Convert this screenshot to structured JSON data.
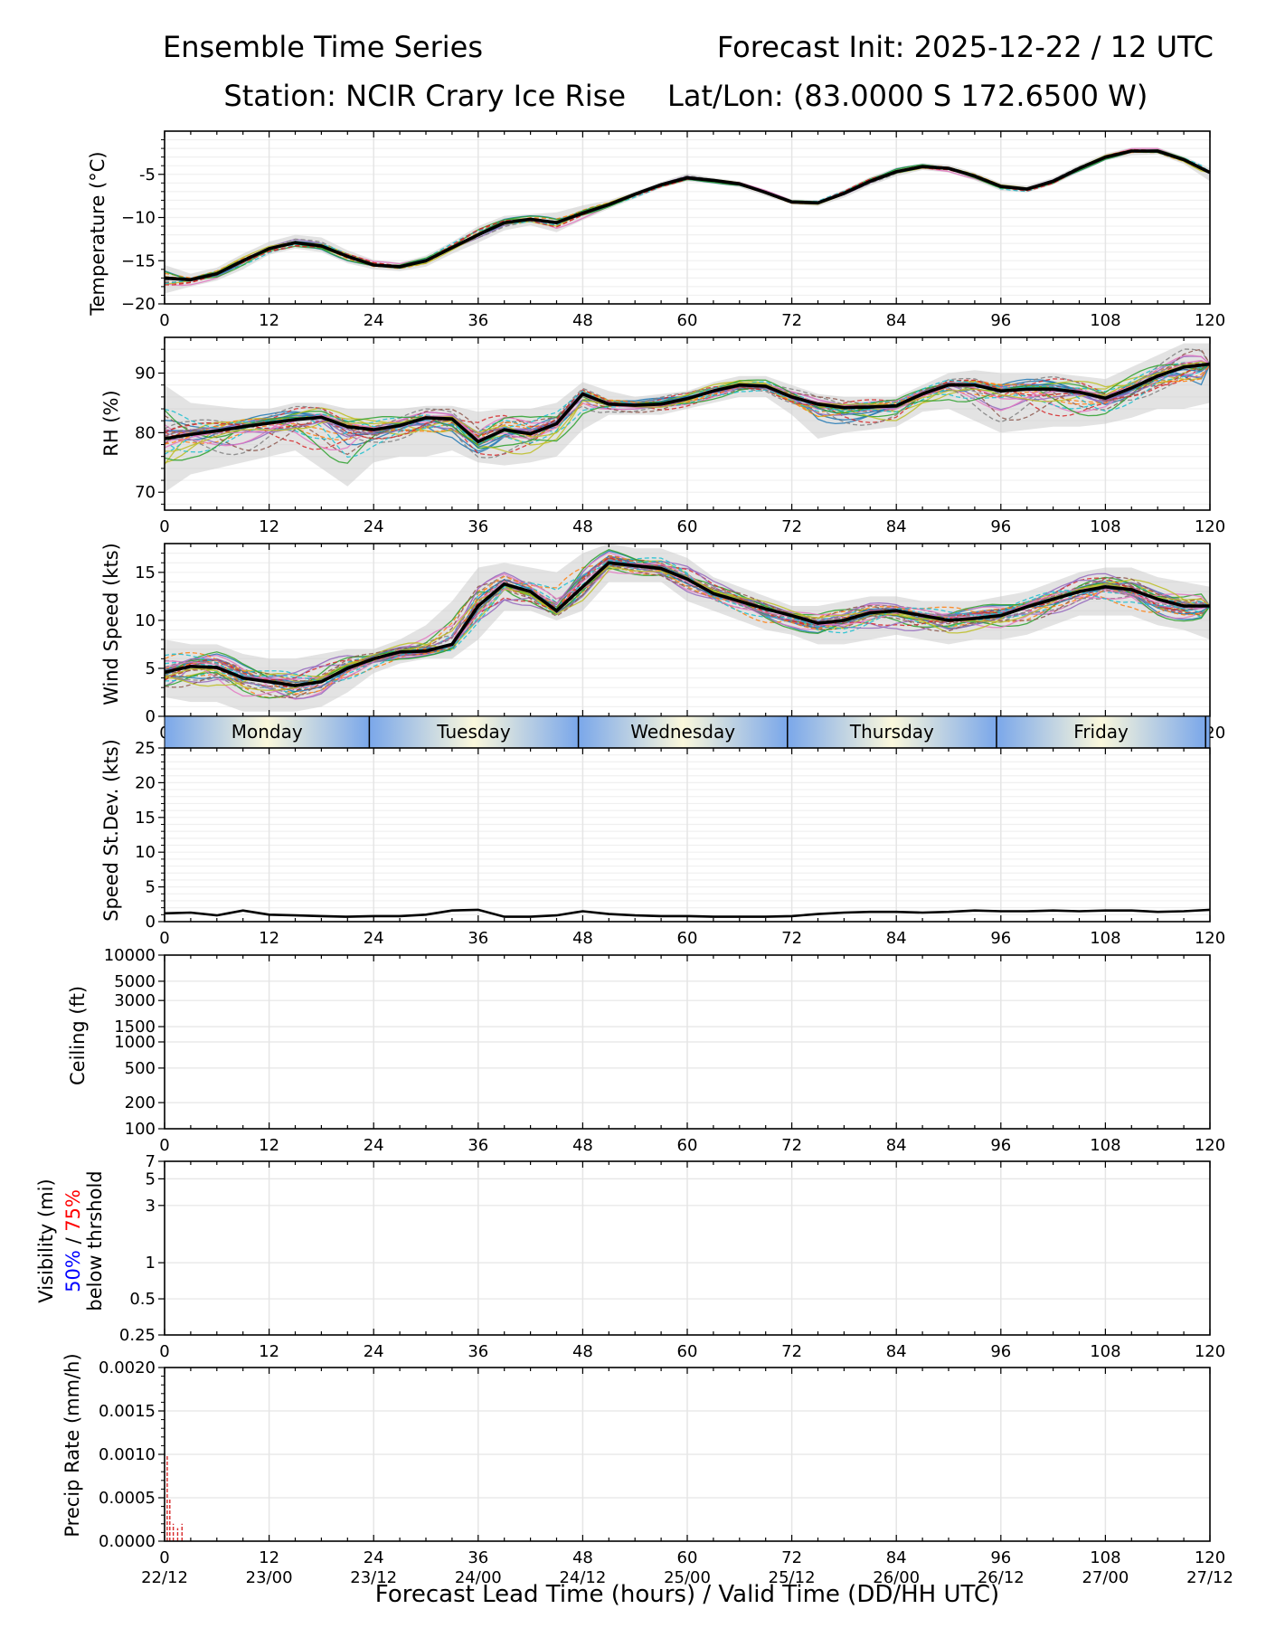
{
  "header": {
    "title_left": "Ensemble Time Series",
    "title_right": "Forecast Init: 2025-12-22 / 12 UTC",
    "station": "Station: NCIR Crary Ice Rise",
    "latlon": "Lat/Lon: (83.0000 S 172.6500 W)"
  },
  "x_axis": {
    "label": "Forecast Lead Time (hours) / Valid Time (DD/HH UTC)",
    "ticks": [
      "0",
      "12",
      "24",
      "36",
      "48",
      "60",
      "72",
      "84",
      "96",
      "108",
      "120"
    ],
    "valid_times": [
      "22/12",
      "23/00",
      "23/12",
      "24/00",
      "24/12",
      "25/00",
      "25/12",
      "26/00",
      "26/12",
      "27/00",
      "27/12"
    ],
    "range": [
      0,
      120
    ]
  },
  "day_band": {
    "days": [
      "Monday",
      "Tuesday",
      "Wednesday",
      "Thursday",
      "Friday"
    ],
    "boundaries_hours": [
      0,
      23.5,
      47.5,
      71.5,
      95.5,
      119.5
    ]
  },
  "colors": {
    "mean_line": "#000000",
    "spread": "#cccccc",
    "grid": "#e5e5e5",
    "vis_50": "#0000ff",
    "vis_75": "#ff0000",
    "precip": "#d62728",
    "day_light": "#fbf8dc",
    "day_dark": "#7aa7ea"
  },
  "panels": {
    "temperature": {
      "label": "Temperature (°C)",
      "ylim": [
        -20,
        0
      ],
      "yticks": [
        "-5",
        "−10",
        "−15",
        "−20"
      ]
    },
    "rh": {
      "label": "RH (%)",
      "ylim": [
        67,
        96
      ],
      "yticks": [
        "90",
        "80",
        "70"
      ]
    },
    "wind": {
      "label": "Wind Speed (kts)",
      "ylim": [
        0,
        18
      ],
      "yticks": [
        "15",
        "10",
        "5",
        "0"
      ]
    },
    "stdev": {
      "label": "Speed St.Dev. (kts)",
      "ylim": [
        0,
        25
      ],
      "yticks": [
        "25",
        "20",
        "15",
        "10",
        "5",
        "0"
      ]
    },
    "ceiling": {
      "label": "Ceiling (ft)",
      "scale": "log",
      "ylim": [
        100,
        10000
      ],
      "yticks": [
        "10000",
        "5000",
        "3000",
        "1500",
        "1000",
        "500",
        "200",
        "100"
      ]
    },
    "visibility": {
      "label_line1": "Visibility (mi)",
      "label_50": "50%",
      "label_sep": " / ",
      "label_75": "75%",
      "label_line3": "below thrshold",
      "scale": "log",
      "ylim": [
        0.25,
        7
      ],
      "yticks": [
        "7",
        "5",
        "3",
        "1",
        "0.5",
        "0.25"
      ]
    },
    "precip": {
      "label": "Precip Rate (mm/h)",
      "ylim": [
        0,
        0.002
      ],
      "yticks": [
        "0.0020",
        "0.0015",
        "0.0010",
        "0.0005",
        "0.0000"
      ]
    }
  },
  "chart_data": [
    {
      "type": "line",
      "title": "Temperature",
      "xlabel": "Forecast Lead Time (hours)",
      "ylabel": "Temperature (°C)",
      "ylim": [
        -20,
        0
      ],
      "x": [
        0,
        3,
        6,
        9,
        12,
        15,
        18,
        21,
        24,
        27,
        30,
        33,
        36,
        39,
        42,
        45,
        48,
        51,
        54,
        57,
        60,
        63,
        66,
        69,
        72,
        75,
        78,
        81,
        84,
        87,
        90,
        93,
        96,
        99,
        102,
        105,
        108,
        111,
        114,
        117,
        120
      ],
      "series": [
        {
          "name": "ensemble mean",
          "values": [
            -17,
            -17.2,
            -16.5,
            -15,
            -13.6,
            -12.9,
            -13.3,
            -14.5,
            -15.5,
            -15.7,
            -15,
            -13.5,
            -12,
            -10.6,
            -10.2,
            -10.6,
            -9.5,
            -8.5,
            -7.3,
            -6.2,
            -5.4,
            -5.7,
            -6.1,
            -7.1,
            -8.2,
            -8.3,
            -7.2,
            -5.8,
            -4.7,
            -4.1,
            -4.3,
            -5.2,
            -6.4,
            -6.7,
            -5.8,
            -4.3,
            -3,
            -2.3,
            -2.3,
            -3.3,
            -4.8
          ]
        },
        {
          "name": "ensemble max",
          "values": [
            -15.5,
            -16.5,
            -15.8,
            -14.2,
            -12.8,
            -12,
            -12.3,
            -13.8,
            -14.9,
            -15.2,
            -14.4,
            -12.8,
            -11,
            -9.8,
            -9.6,
            -9.4,
            -8.6,
            -8,
            -7,
            -5.9,
            -4.9,
            -5.4,
            -5.8,
            -6.8,
            -7.9,
            -8,
            -6.8,
            -5.3,
            -4.2,
            -3.7,
            -3.9,
            -4.8,
            -6,
            -6.3,
            -5.4,
            -3.9,
            -2.6,
            -1.9,
            -1.9,
            -2.9,
            -4.3
          ]
        },
        {
          "name": "ensemble min",
          "values": [
            -18.8,
            -18,
            -17.3,
            -16,
            -14.3,
            -13.6,
            -14,
            -15.3,
            -16,
            -16.2,
            -15.7,
            -14.2,
            -12.9,
            -11.5,
            -10.9,
            -11.7,
            -10.3,
            -9,
            -7.8,
            -6.6,
            -5.8,
            -6.1,
            -6.5,
            -7.5,
            -8.5,
            -8.7,
            -7.7,
            -6.3,
            -5.2,
            -4.5,
            -4.8,
            -5.7,
            -6.9,
            -7.1,
            -6.2,
            -4.8,
            -3.4,
            -2.8,
            -2.7,
            -3.8,
            -5.8
          ]
        }
      ]
    },
    {
      "type": "line",
      "title": "RH",
      "xlabel": "Forecast Lead Time (hours)",
      "ylabel": "RH (%)",
      "ylim": [
        67,
        96
      ],
      "x": [
        0,
        3,
        6,
        9,
        12,
        15,
        18,
        21,
        24,
        27,
        30,
        33,
        36,
        39,
        42,
        45,
        48,
        51,
        54,
        57,
        60,
        63,
        66,
        69,
        72,
        75,
        78,
        81,
        84,
        87,
        90,
        93,
        96,
        99,
        102,
        105,
        108,
        111,
        114,
        117,
        120
      ],
      "series": [
        {
          "name": "ensemble mean",
          "values": [
            79,
            79.7,
            80.3,
            81,
            81.6,
            82.2,
            82.6,
            81,
            80.5,
            81.2,
            82.5,
            82.3,
            78.5,
            80.5,
            79.8,
            81.5,
            86.5,
            84.8,
            84.6,
            84.8,
            85.7,
            87,
            88,
            87.8,
            86,
            84.8,
            84.2,
            84.3,
            84.5,
            86.5,
            88,
            88,
            87,
            87.3,
            87.3,
            86.8,
            85.8,
            87.5,
            89.5,
            91,
            91.5
          ]
        },
        {
          "name": "ensemble max",
          "values": [
            88,
            85,
            84.5,
            84,
            84,
            85,
            85,
            84,
            84,
            84,
            84.5,
            84.5,
            83.5,
            84,
            84,
            85,
            88.5,
            87,
            86,
            86.5,
            87,
            88.5,
            89.5,
            89.5,
            88,
            86.5,
            86,
            86,
            86,
            88,
            90,
            90.5,
            90,
            90,
            90,
            89.5,
            89,
            91,
            93,
            95,
            95
          ]
        },
        {
          "name": "ensemble min",
          "values": [
            70,
            73,
            74,
            75,
            76,
            77,
            74,
            71,
            75,
            76,
            76,
            77,
            75,
            74.5,
            75,
            76,
            80.5,
            83,
            83,
            83,
            84,
            85,
            86,
            86,
            83,
            79,
            80,
            80.5,
            81,
            83.5,
            84,
            82,
            80,
            80.5,
            81,
            81,
            81.5,
            82.5,
            84,
            84,
            85
          ]
        }
      ]
    },
    {
      "type": "line",
      "title": "Wind Speed",
      "xlabel": "Forecast Lead Time (hours)",
      "ylabel": "Wind Speed (kts)",
      "ylim": [
        0,
        18
      ],
      "x": [
        0,
        3,
        6,
        9,
        12,
        15,
        18,
        21,
        24,
        27,
        30,
        33,
        36,
        39,
        42,
        45,
        48,
        51,
        54,
        57,
        60,
        63,
        66,
        69,
        72,
        75,
        78,
        81,
        84,
        87,
        90,
        93,
        96,
        99,
        102,
        105,
        108,
        111,
        114,
        117,
        120
      ],
      "series": [
        {
          "name": "ensemble mean",
          "values": [
            4.6,
            5.2,
            5.1,
            4,
            3.6,
            3.2,
            3.6,
            5,
            6,
            6.7,
            6.8,
            7.5,
            11.5,
            13.8,
            13,
            11,
            13.5,
            16,
            15.7,
            15.4,
            14.3,
            12.8,
            12,
            11.2,
            10.5,
            9.7,
            10,
            10.8,
            11,
            10.5,
            10,
            10.2,
            10.5,
            11.4,
            12.2,
            13,
            13.5,
            13.2,
            12.2,
            11.5,
            11.5
          ]
        },
        {
          "name": "ensemble max",
          "values": [
            8,
            7.5,
            7.5,
            6.5,
            6,
            6,
            6.5,
            7,
            7,
            8,
            9.5,
            12,
            15.5,
            16,
            15.5,
            15,
            17,
            18,
            17.5,
            17.5,
            16.5,
            14.5,
            13.5,
            12.5,
            11.5,
            11.5,
            12,
            12.5,
            12.5,
            12,
            12,
            12,
            12.5,
            13,
            14,
            15,
            15.5,
            15.5,
            14.5,
            14,
            13.5
          ]
        },
        {
          "name": "ensemble min",
          "values": [
            2,
            1.5,
            1.5,
            0.5,
            0.5,
            0.5,
            1,
            2.5,
            4.5,
            5.5,
            6,
            6,
            8,
            11,
            11,
            10,
            11,
            14,
            14,
            14,
            12,
            11,
            10,
            9,
            8.5,
            7.5,
            7.5,
            8,
            8.5,
            8,
            7.5,
            8,
            8,
            8.5,
            9.5,
            10.5,
            10.5,
            10.5,
            9.5,
            9,
            8
          ]
        }
      ]
    },
    {
      "type": "line",
      "title": "Speed St.Dev.",
      "xlabel": "Forecast Lead Time (hours)",
      "ylabel": "Speed St.Dev. (kts)",
      "ylim": [
        0,
        25
      ],
      "x": [
        0,
        3,
        6,
        9,
        12,
        15,
        18,
        21,
        24,
        27,
        30,
        33,
        36,
        39,
        42,
        45,
        48,
        51,
        54,
        57,
        60,
        63,
        66,
        69,
        72,
        75,
        78,
        81,
        84,
        87,
        90,
        93,
        96,
        99,
        102,
        105,
        108,
        111,
        114,
        117,
        120
      ],
      "series": [
        {
          "name": "speed st.dev.",
          "values": [
            1.2,
            1.3,
            0.9,
            1.6,
            1,
            0.9,
            0.8,
            0.7,
            0.8,
            0.8,
            1,
            1.6,
            1.7,
            0.7,
            0.7,
            0.9,
            1.5,
            1.1,
            0.9,
            0.8,
            0.8,
            0.7,
            0.7,
            0.7,
            0.8,
            1.1,
            1.3,
            1.4,
            1.4,
            1.3,
            1.4,
            1.6,
            1.5,
            1.5,
            1.6,
            1.5,
            1.6,
            1.6,
            1.4,
            1.5,
            1.7
          ]
        }
      ]
    },
    {
      "type": "line",
      "title": "Ceiling",
      "xlabel": "Forecast Lead Time (hours)",
      "ylabel": "Ceiling (ft)",
      "ylim": [
        100,
        10000
      ],
      "x": [],
      "series": []
    },
    {
      "type": "line",
      "title": "Visibility",
      "xlabel": "Forecast Lead Time (hours)",
      "ylabel": "Visibility (mi)",
      "ylim": [
        0.25,
        7
      ],
      "x": [],
      "series": []
    },
    {
      "type": "bar",
      "title": "Precip Rate",
      "xlabel": "Forecast Lead Time (hours)",
      "ylabel": "Precip Rate (mm/h)",
      "ylim": [
        0,
        0.002
      ],
      "x": [
        0.3,
        0.6,
        1,
        1.5,
        2
      ],
      "values": [
        0.001,
        0.0005,
        0.0002,
        0.00015,
        0.0002
      ]
    }
  ]
}
